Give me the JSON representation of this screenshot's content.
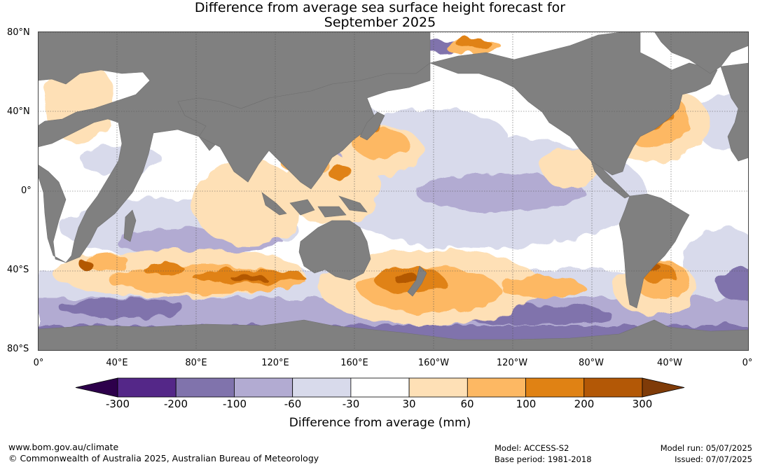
{
  "title": {
    "line1": "Difference from average sea surface height forecast for",
    "line2": "September 2025"
  },
  "map": {
    "latitude_labels": [
      "80°N",
      "40°N",
      "0°",
      "40°S",
      "80°S"
    ],
    "longitude_labels": [
      "0°",
      "40°E",
      "80°E",
      "120°E",
      "160°E",
      "160°W",
      "120°W",
      "80°W",
      "40°W",
      "0°"
    ],
    "land_color": "#808080",
    "ocean_base_color": "#ffffff"
  },
  "legend": {
    "title": "Difference from average (mm)",
    "ticks": [
      "-300",
      "-200",
      "-100",
      "-60",
      "-30",
      "30",
      "60",
      "100",
      "200",
      "300"
    ],
    "colors": {
      "below_min": "#2d004b",
      "bins": [
        "#542788",
        "#8073ac",
        "#b2abd2",
        "#d8daeb",
        "#ffffff",
        "#fee0b6",
        "#fdb863",
        "#e08214",
        "#b35806"
      ],
      "above_max": "#7f3b08"
    }
  },
  "footer": {
    "url": "www.bom.gov.au/climate",
    "copyright": "© Commonwealth of Australia 2025, Australian Bureau of Meteorology",
    "model": "Model: ACCESS-S2",
    "base_period": "Base period: 1981-2018",
    "model_run": "Model run: 05/07/2025",
    "issued": "Issued: 07/07/2025"
  }
}
